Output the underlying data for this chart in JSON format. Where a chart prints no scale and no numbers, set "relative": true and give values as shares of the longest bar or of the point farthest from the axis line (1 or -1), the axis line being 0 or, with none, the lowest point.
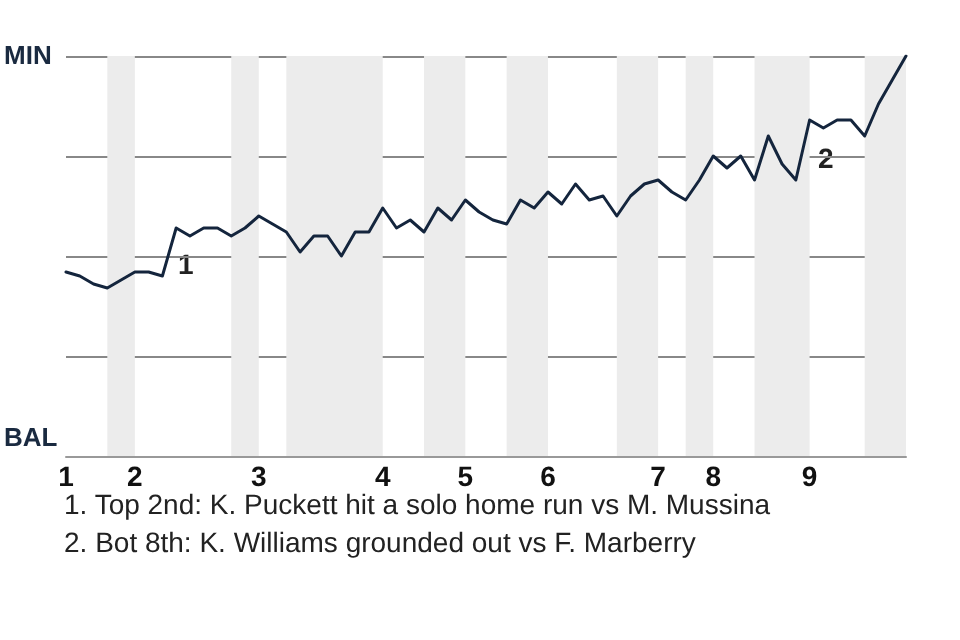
{
  "chart_data": {
    "type": "line",
    "relative": true,
    "grid": "y",
    "marker": "none",
    "line_style": "solid",
    "categories": [
      "1",
      null,
      null,
      null,
      null,
      "2",
      null,
      null,
      null,
      null,
      null,
      null,
      null,
      null,
      "3",
      null,
      null,
      null,
      null,
      null,
      null,
      null,
      null,
      "4",
      null,
      null,
      null,
      null,
      null,
      "5",
      null,
      null,
      null,
      null,
      null,
      "6",
      null,
      null,
      null,
      null,
      null,
      null,
      null,
      "7",
      null,
      null,
      null,
      "8",
      null,
      null,
      null,
      null,
      null,
      null,
      "9",
      null,
      null,
      null,
      null,
      null,
      null,
      null
    ],
    "series": [
      {
        "color": "#14253d",
        "values": [
          0.46,
          0.45,
          0.43,
          0.42,
          0.44,
          0.46,
          0.46,
          0.45,
          0.57,
          0.55,
          0.57,
          0.57,
          0.55,
          0.57,
          0.6,
          0.58,
          0.56,
          0.51,
          0.55,
          0.55,
          0.5,
          0.56,
          0.56,
          0.62,
          0.57,
          0.59,
          0.56,
          0.62,
          0.59,
          0.64,
          0.61,
          0.59,
          0.58,
          0.64,
          0.62,
          0.66,
          0.63,
          0.68,
          0.64,
          0.65,
          0.6,
          0.65,
          0.68,
          0.69,
          0.66,
          0.64,
          0.69,
          0.75,
          0.72,
          0.75,
          0.69,
          0.8,
          0.73,
          0.69,
          0.84,
          0.82,
          0.84,
          0.84,
          0.8,
          0.88,
          0.94,
          1.0
        ]
      }
    ],
    "annotations": [
      "MIN",
      "BAL",
      "1",
      "2",
      "1. Top 2nd: K. Puckett hit a solo home run vs M. Mussina",
      "2. Bot 8th: K. Williams grounded out vs F. Marberry"
    ]
  }
}
